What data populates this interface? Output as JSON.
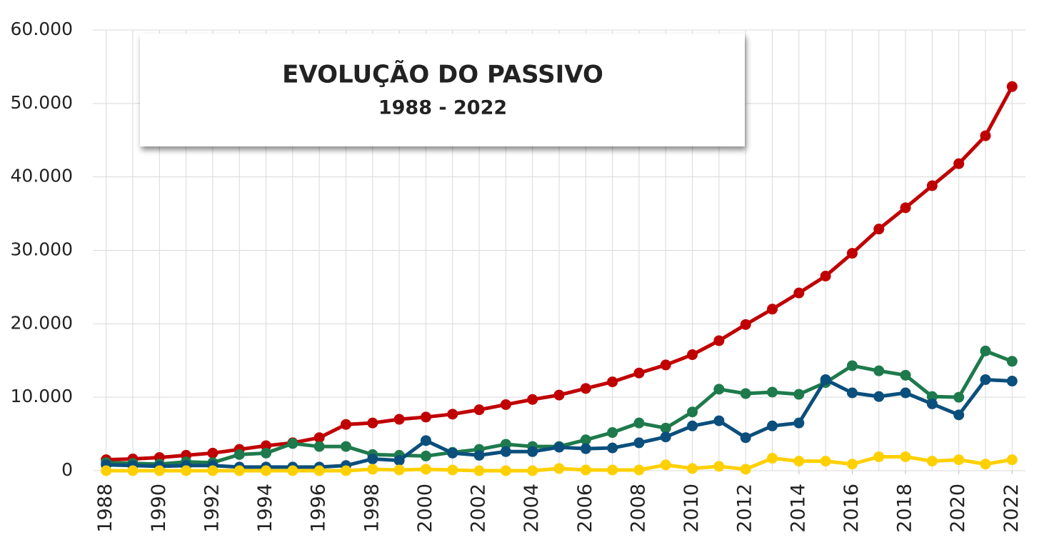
{
  "chart_data": {
    "type": "line",
    "title": "EVOLUÇÃO DO PASSIVO",
    "subtitle": "1988 - 2022",
    "x": [
      1988,
      1989,
      1990,
      1991,
      1992,
      1993,
      1994,
      1995,
      1996,
      1997,
      1998,
      1999,
      2000,
      2001,
      2002,
      2003,
      2004,
      2005,
      2006,
      2007,
      2008,
      2009,
      2010,
      2011,
      2012,
      2013,
      2014,
      2015,
      2016,
      2017,
      2018,
      2019,
      2020,
      2021,
      2022
    ],
    "series": [
      {
        "color": "#c00000",
        "values": [
          1500,
          1600,
          1800,
          2100,
          2400,
          2900,
          3400,
          3800,
          4500,
          6300,
          6500,
          7000,
          7300,
          7700,
          8300,
          9000,
          9700,
          10300,
          11200,
          12100,
          13300,
          14400,
          15800,
          17700,
          19900,
          22000,
          24200,
          26500,
          29600,
          32900,
          35800,
          38800,
          41800,
          45600,
          52300
        ]
      },
      {
        "color": "#1e7a4c",
        "values": [
          1100,
          1000,
          900,
          1200,
          1100,
          2200,
          2400,
          3700,
          3300,
          3300,
          2200,
          2100,
          2000,
          2500,
          2900,
          3600,
          3300,
          3300,
          4200,
          5200,
          6500,
          5800,
          8000,
          11100,
          10500,
          10700,
          10400,
          12000,
          14300,
          13600,
          13000,
          10100,
          10000,
          16300,
          14900
        ]
      },
      {
        "color": "#0b4f7c",
        "values": [
          800,
          700,
          600,
          700,
          700,
          500,
          500,
          500,
          500,
          700,
          1600,
          1400,
          4100,
          2400,
          2100,
          2600,
          2600,
          3200,
          3000,
          3100,
          3800,
          4600,
          6100,
          6800,
          4500,
          6100,
          6500,
          12400,
          10600,
          10100,
          10600,
          9100,
          7600,
          12400,
          12200
        ]
      },
      {
        "color": "#ffd000",
        "values": [
          0,
          0,
          0,
          0,
          0,
          0,
          0,
          0,
          0,
          0,
          200,
          100,
          200,
          100,
          0,
          0,
          0,
          300,
          100,
          100,
          100,
          800,
          300,
          600,
          200,
          1700,
          1300,
          1300,
          900,
          1900,
          1900,
          1300,
          1500,
          900,
          1500
        ]
      }
    ],
    "xlim": [
      1987.5,
      2022.5
    ],
    "xticks": [
      1988,
      1990,
      1992,
      1994,
      1996,
      1998,
      2000,
      2002,
      2004,
      2006,
      2008,
      2010,
      2012,
      2014,
      2016,
      2018,
      2020,
      2022
    ],
    "ylim": [
      0,
      60000
    ],
    "yticks": [
      0,
      {
        "value": 10000,
        "label": "10.000"
      },
      {
        "value": 20000,
        "label": "20.000"
      },
      {
        "value": 30000,
        "label": "30.000"
      },
      {
        "value": 40000,
        "label": "40.000"
      },
      {
        "value": 50000,
        "label": "50.000"
      },
      {
        "value": 60000,
        "label": "60.000"
      }
    ],
    "grid": true
  }
}
